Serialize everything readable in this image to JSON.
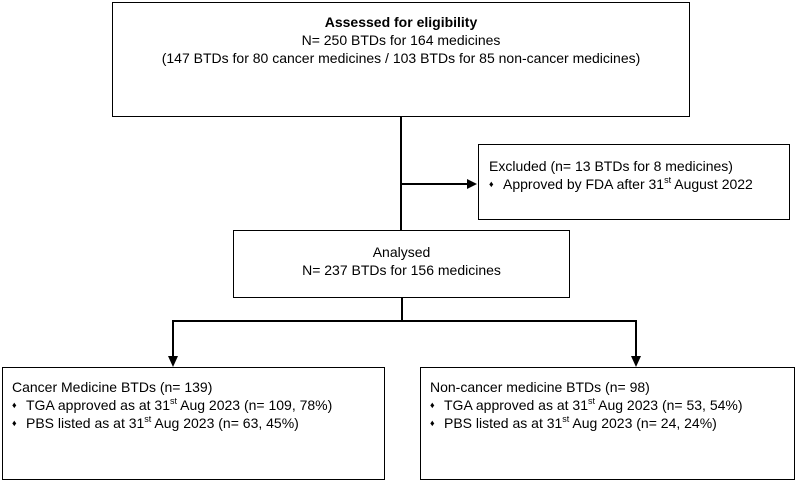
{
  "top_box": {
    "title": "Assessed for eligibility",
    "line1": "N= 250 BTDs for 164 medicines",
    "line2": "(147 BTDs for 80 cancer medicines / 103 BTDs for 85 non-cancer medicines)"
  },
  "excluded_box": {
    "title": "Excluded (n= 13 BTDs for 8 medicines)",
    "item_pre": "Approved by FDA after 31",
    "item_sup": "st",
    "item_post": " August 2022"
  },
  "analysed_box": {
    "title": "Analysed",
    "line1": "N= 237 BTDs for 156 medicines"
  },
  "cancer_box": {
    "title": "Cancer Medicine BTDs (n= 139)",
    "items": [
      {
        "pre": "TGA approved as at 31",
        "sup": "st",
        "post": " Aug 2023 (n= 109, 78%)"
      },
      {
        "pre": "PBS listed as at 31",
        "sup": "st",
        "post": " Aug 2023 (n= 63, 45%)"
      }
    ]
  },
  "noncancer_box": {
    "title": "Non-cancer medicine BTDs (n= 98)",
    "items": [
      {
        "pre": "TGA approved as at 31",
        "sup": "st",
        "post": " Aug 2023 (n= 53, 54%)"
      },
      {
        "pre": "PBS listed as at 31",
        "sup": "st",
        "post": " Aug 2023 (n= 24, 24%)"
      }
    ]
  },
  "bullet_glyph": "♦"
}
